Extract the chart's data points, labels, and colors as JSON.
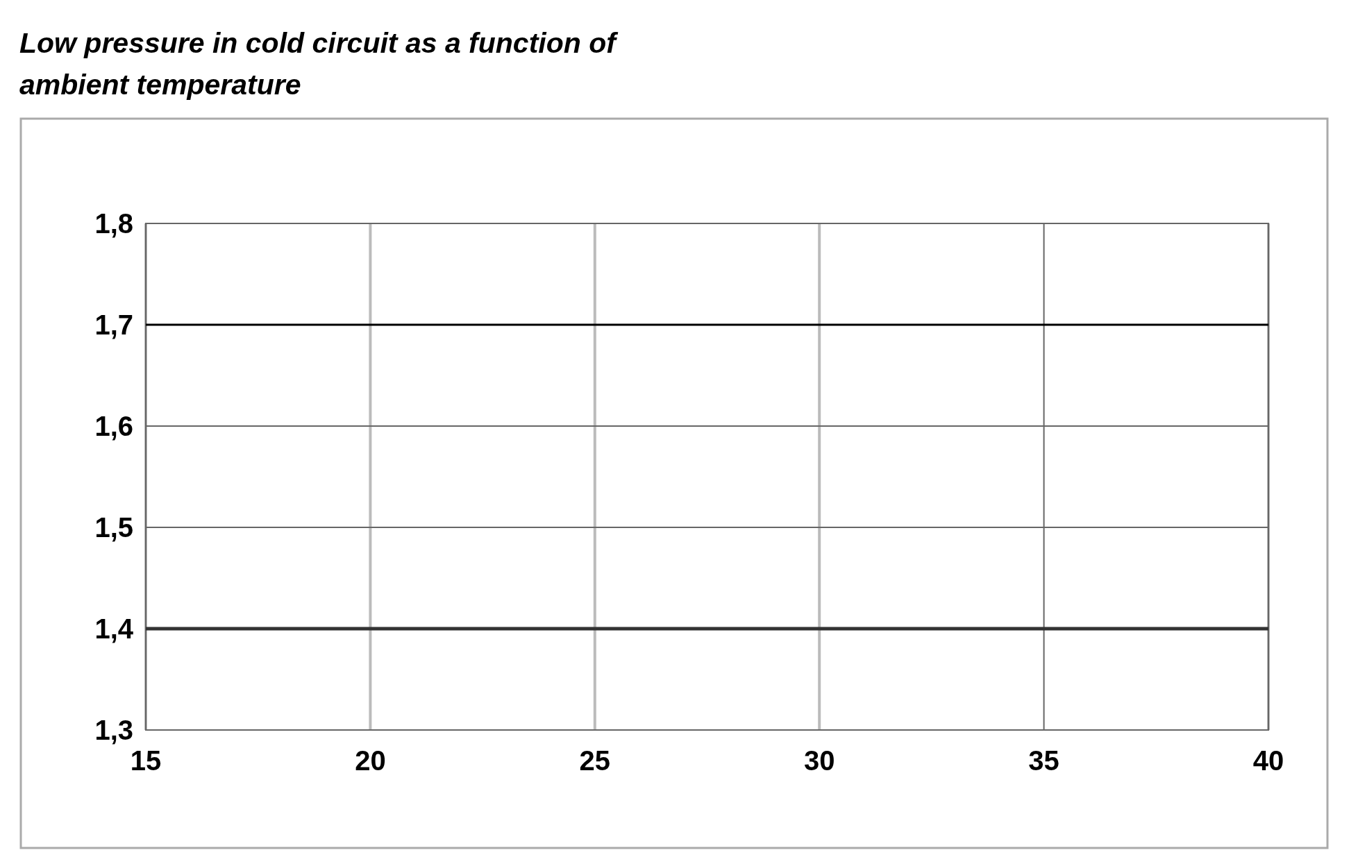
{
  "chart_data": {
    "type": "line",
    "title": "Low pressure in cold circuit as a function of\nambient temperature",
    "xlim": [
      15,
      40
    ],
    "xticks": [
      15,
      20,
      25,
      30,
      35,
      40
    ],
    "ylim": [
      1.3,
      1.8
    ],
    "yticks": [
      {
        "value": 1.3,
        "label": "1,3"
      },
      {
        "value": 1.4,
        "label": "1,4"
      },
      {
        "value": 1.5,
        "label": "1,5"
      },
      {
        "value": 1.6,
        "label": "1,6"
      },
      {
        "value": 1.7,
        "label": "1,7"
      },
      {
        "value": 1.8,
        "label": "1,8"
      }
    ],
    "grid": true,
    "ref_lines": [
      {
        "axis": "y",
        "value": 1.7,
        "color": "#000000",
        "line_style": "solid"
      },
      {
        "axis": "y",
        "value": 1.4,
        "color": "#333333",
        "line_style": "solid"
      }
    ]
  }
}
